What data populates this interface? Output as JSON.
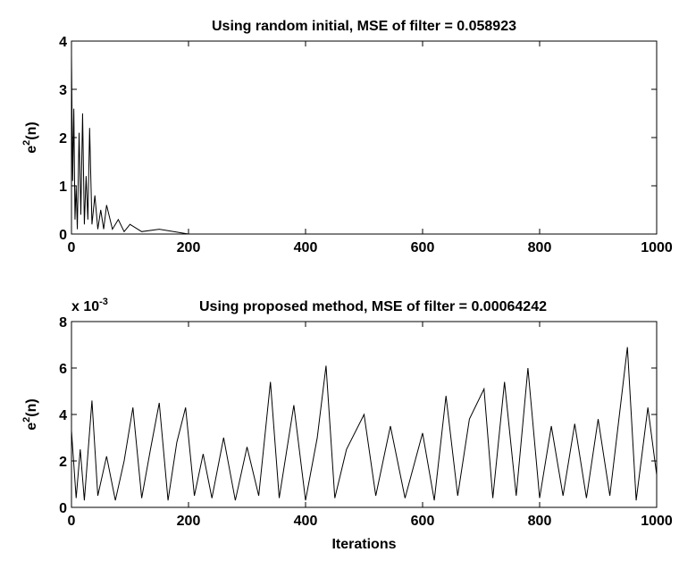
{
  "chart_data": [
    {
      "type": "line",
      "title": "Using random initial, MSE of filter = 0.058923",
      "ylabel": [
        "e",
        "2",
        "(n)"
      ],
      "x": [
        0,
        2,
        4,
        6,
        8,
        10,
        13,
        16,
        19,
        22,
        25,
        28,
        31,
        35,
        40,
        45,
        50,
        55,
        60,
        70,
        80,
        90,
        100,
        120,
        150,
        200,
        300,
        1000
      ],
      "series": [
        {
          "color": "#000000",
          "values": [
            3.7,
            1.1,
            2.6,
            0.3,
            1.0,
            0.1,
            2.1,
            0.4,
            2.5,
            0.2,
            1.2,
            0.3,
            2.2,
            0.2,
            0.8,
            0.1,
            0.5,
            0.1,
            0.6,
            0.1,
            0.3,
            0.05,
            0.2,
            0.05,
            0.1,
            0,
            0,
            0
          ]
        }
      ],
      "xlim": [
        0,
        1000
      ],
      "xticks": [
        0,
        200,
        400,
        600,
        800,
        1000
      ],
      "ylim": [
        0,
        4
      ],
      "yticks": [
        0,
        1,
        2,
        3,
        4
      ]
    },
    {
      "type": "line",
      "title": "Using proposed method, MSE of filter = 0.00064242",
      "y_multiplier": "x 10",
      "y_multiplier_exponent": "-3",
      "ylabel": [
        "e",
        "2",
        "(n)"
      ],
      "xlabel": "Iterations",
      "x": [
        0,
        8,
        15,
        22,
        35,
        45,
        60,
        75,
        90,
        105,
        120,
        135,
        150,
        165,
        180,
        195,
        210,
        225,
        240,
        260,
        280,
        300,
        320,
        340,
        355,
        380,
        400,
        420,
        435,
        450,
        470,
        500,
        520,
        545,
        570,
        600,
        620,
        640,
        660,
        680,
        705,
        720,
        740,
        760,
        780,
        800,
        820,
        840,
        860,
        880,
        900,
        920,
        950,
        965,
        985,
        1000
      ],
      "series": [
        {
          "color": "#000000",
          "values": [
            3.3,
            0.4,
            2.5,
            0.3,
            4.6,
            0.5,
            2.2,
            0.3,
            2.0,
            4.3,
            0.4,
            2.5,
            4.5,
            0.3,
            2.8,
            4.3,
            0.5,
            2.3,
            0.4,
            3.0,
            0.3,
            2.6,
            0.5,
            5.4,
            0.4,
            4.4,
            0.3,
            3.0,
            6.1,
            0.4,
            2.5,
            4.0,
            0.5,
            3.5,
            0.4,
            3.2,
            0.3,
            4.8,
            0.5,
            3.8,
            5.1,
            0.4,
            5.4,
            0.5,
            6.0,
            0.4,
            3.5,
            0.5,
            3.6,
            0.4,
            3.8,
            0.5,
            6.9,
            0.3,
            4.3,
            1.4
          ]
        }
      ],
      "xlim": [
        0,
        1000
      ],
      "xticks": [
        0,
        200,
        400,
        600,
        800,
        1000
      ],
      "ylim": [
        0,
        8
      ],
      "yticks": [
        0,
        2,
        4,
        6,
        8
      ]
    }
  ]
}
